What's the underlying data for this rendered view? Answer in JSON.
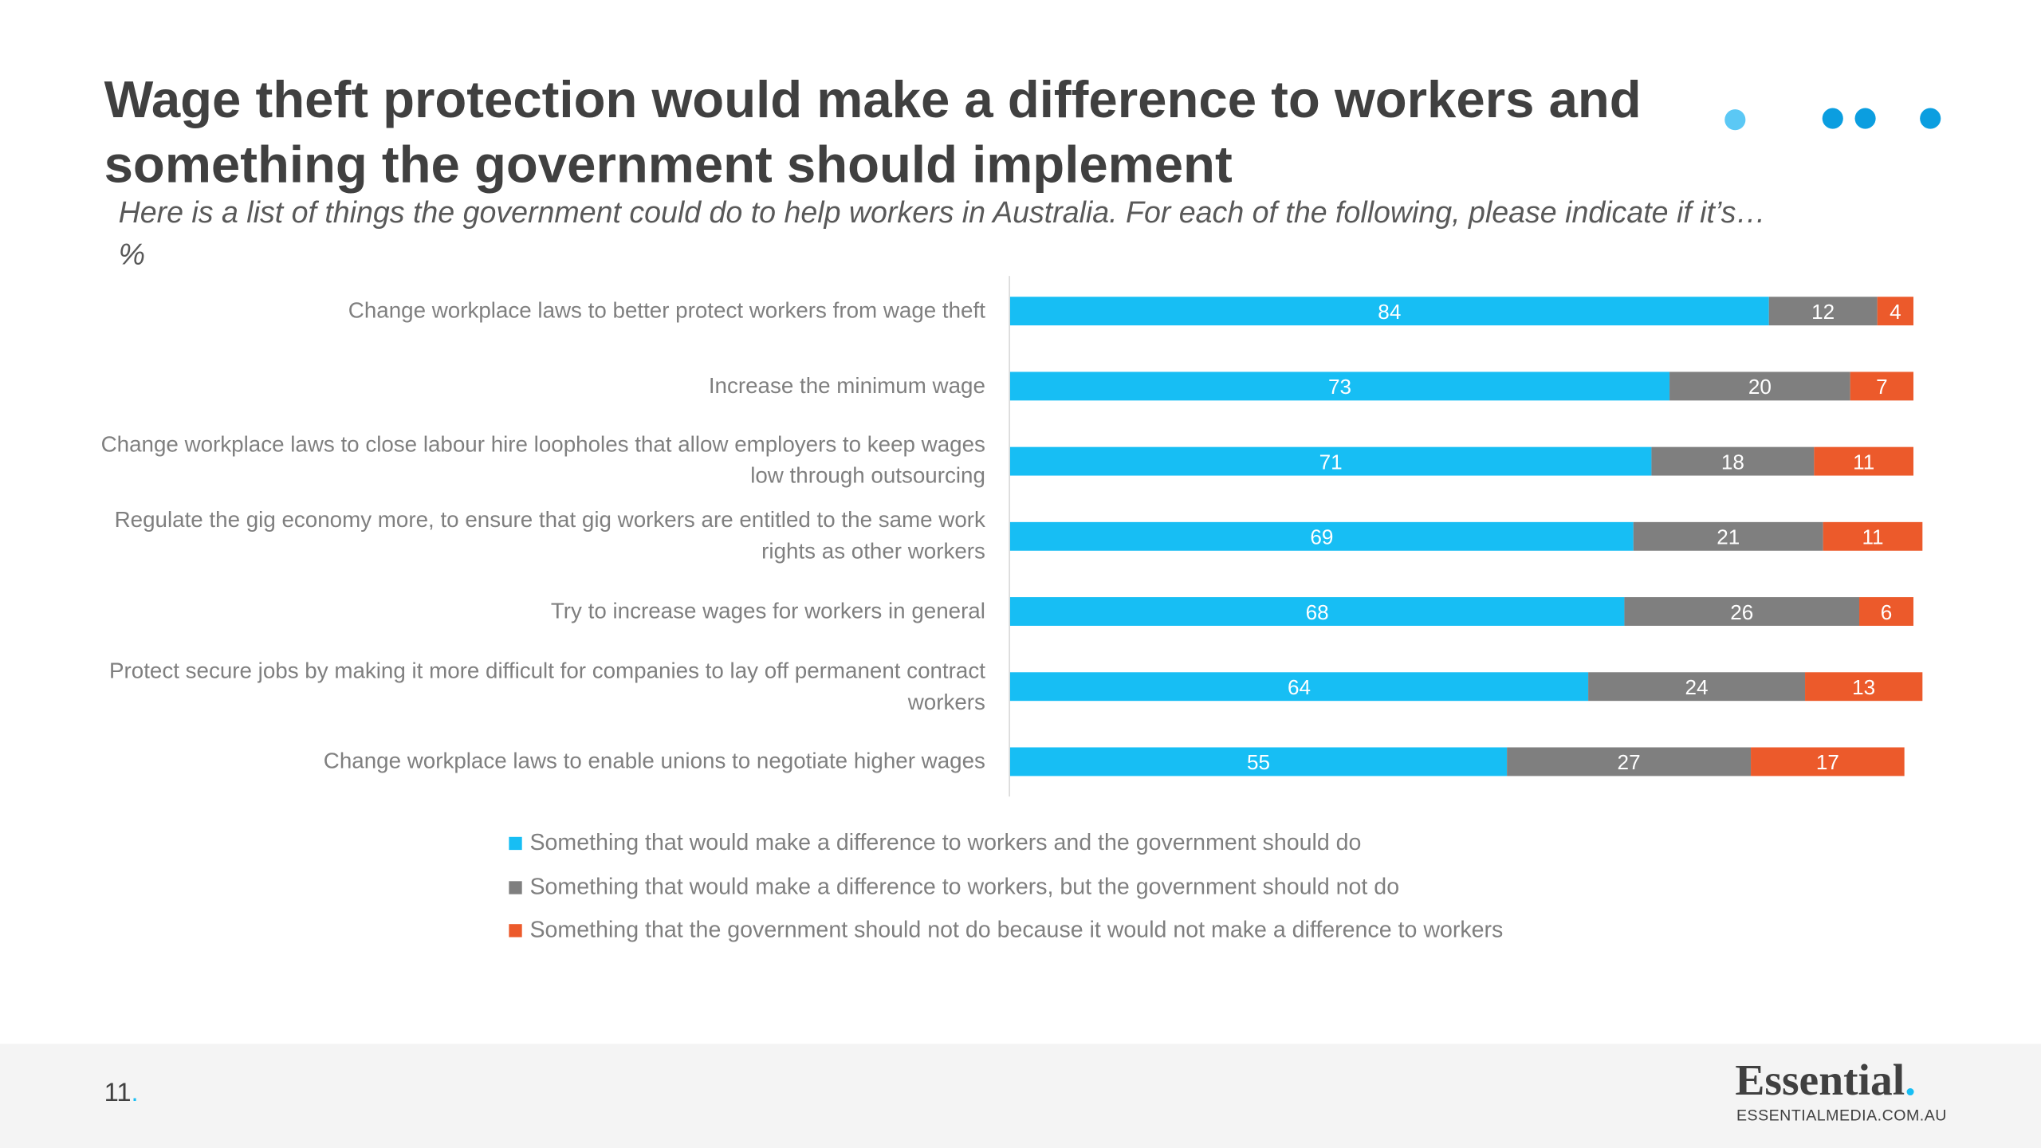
{
  "title": "Wage theft protection would make a difference to workers and something the government should implement",
  "subtitle": "Here is a list of things the government could do to help workers in Australia. For each of the following, please indicate if it’s…",
  "unit": "%",
  "page_number": "11",
  "logo": {
    "name": "Essential",
    "url": "ESSENTIALMEDIA.COM.AU"
  },
  "chart_data": {
    "type": "stacked-bar-horizontal",
    "categories": [
      "Change workplace laws to better protect workers from wage theft",
      "Increase the minimum wage",
      "Change workplace laws to close labour hire loopholes that allow employers to keep wages low through outsourcing",
      "Regulate the gig economy more, to ensure that gig workers are entitled to the same work rights as other workers",
      "Try to increase wages for workers in general",
      "Protect secure jobs by making it more difficult for companies to lay off permanent contract workers",
      "Change workplace laws to enable unions to negotiate higher wages"
    ],
    "series": [
      {
        "name": "Something that would make a difference to workers and the government should do",
        "color": "#17bef4",
        "values": [
          84,
          73,
          71,
          69,
          68,
          64,
          55
        ]
      },
      {
        "name": "Something that would make a difference to workers, but the government should not do",
        "color": "#7f7f7f",
        "values": [
          12,
          20,
          18,
          21,
          26,
          24,
          27
        ]
      },
      {
        "name": "Something that the government should not do because it would not make a difference to workers",
        "color": "#ec5a2b",
        "values": [
          4,
          7,
          11,
          11,
          6,
          13,
          17
        ]
      }
    ],
    "xlim": [
      0,
      100
    ]
  }
}
